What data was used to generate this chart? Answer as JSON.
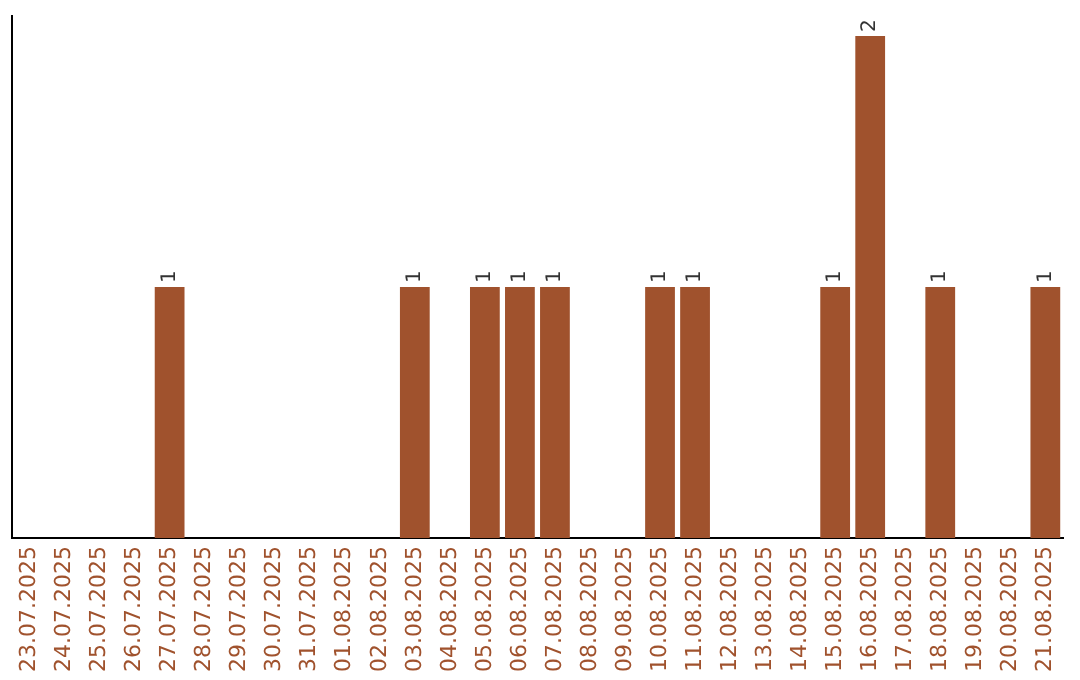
{
  "chart_data": {
    "type": "bar",
    "categories": [
      "23.07.2025",
      "24.07.2025",
      "25.07.2025",
      "26.07.2025",
      "27.07.2025",
      "28.07.2025",
      "29.07.2025",
      "30.07.2025",
      "31.07.2025",
      "01.08.2025",
      "02.08.2025",
      "03.08.2025",
      "04.08.2025",
      "05.08.2025",
      "06.08.2025",
      "07.08.2025",
      "08.08.2025",
      "09.08.2025",
      "10.08.2025",
      "11.08.2025",
      "12.08.2025",
      "13.08.2025",
      "14.08.2025",
      "15.08.2025",
      "16.08.2025",
      "17.08.2025",
      "18.08.2025",
      "19.08.2025",
      "20.08.2025",
      "21.08.2025"
    ],
    "values": [
      0,
      0,
      0,
      0,
      1,
      0,
      0,
      0,
      0,
      0,
      0,
      1,
      0,
      1,
      1,
      1,
      0,
      0,
      1,
      1,
      0,
      0,
      0,
      1,
      2,
      0,
      1,
      0,
      0,
      1
    ],
    "value_labels": [
      null,
      null,
      null,
      null,
      "1",
      null,
      null,
      null,
      null,
      null,
      null,
      "1",
      null,
      "1",
      "1",
      "1",
      null,
      null,
      "1",
      "1",
      null,
      null,
      null,
      "1",
      "2",
      null,
      "1",
      null,
      null,
      "1"
    ],
    "color": "#a0522d",
    "ylim": [
      0,
      2.08
    ],
    "tick_labels": "x",
    "grid": false,
    "legend": false
  }
}
